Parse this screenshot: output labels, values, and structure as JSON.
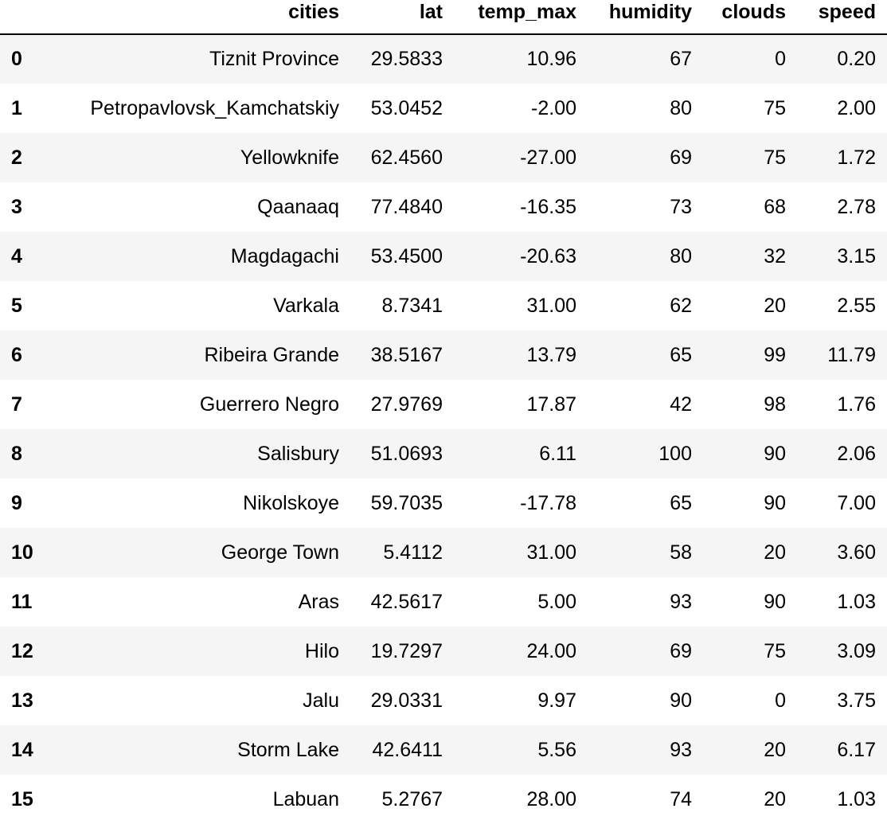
{
  "table": {
    "columns": [
      "cities",
      "lat",
      "temp_max",
      "humidity",
      "clouds",
      "speed"
    ],
    "rows": [
      {
        "index": "0",
        "cities": "Tiznit Province",
        "lat": "29.5833",
        "temp_max": "10.96",
        "humidity": "67",
        "clouds": "0",
        "speed": "0.20"
      },
      {
        "index": "1",
        "cities": "Petropavlovsk_Kamchatskiy",
        "lat": "53.0452",
        "temp_max": "-2.00",
        "humidity": "80",
        "clouds": "75",
        "speed": "2.00"
      },
      {
        "index": "2",
        "cities": "Yellowknife",
        "lat": "62.4560",
        "temp_max": "-27.00",
        "humidity": "69",
        "clouds": "75",
        "speed": "1.72"
      },
      {
        "index": "3",
        "cities": "Qaanaaq",
        "lat": "77.4840",
        "temp_max": "-16.35",
        "humidity": "73",
        "clouds": "68",
        "speed": "2.78"
      },
      {
        "index": "4",
        "cities": "Magdagachi",
        "lat": "53.4500",
        "temp_max": "-20.63",
        "humidity": "80",
        "clouds": "32",
        "speed": "3.15"
      },
      {
        "index": "5",
        "cities": "Varkala",
        "lat": "8.7341",
        "temp_max": "31.00",
        "humidity": "62",
        "clouds": "20",
        "speed": "2.55"
      },
      {
        "index": "6",
        "cities": "Ribeira Grande",
        "lat": "38.5167",
        "temp_max": "13.79",
        "humidity": "65",
        "clouds": "99",
        "speed": "11.79"
      },
      {
        "index": "7",
        "cities": "Guerrero Negro",
        "lat": "27.9769",
        "temp_max": "17.87",
        "humidity": "42",
        "clouds": "98",
        "speed": "1.76"
      },
      {
        "index": "8",
        "cities": "Salisbury",
        "lat": "51.0693",
        "temp_max": "6.11",
        "humidity": "100",
        "clouds": "90",
        "speed": "2.06"
      },
      {
        "index": "9",
        "cities": "Nikolskoye",
        "lat": "59.7035",
        "temp_max": "-17.78",
        "humidity": "65",
        "clouds": "90",
        "speed": "7.00"
      },
      {
        "index": "10",
        "cities": "George Town",
        "lat": "5.4112",
        "temp_max": "31.00",
        "humidity": "58",
        "clouds": "20",
        "speed": "3.60"
      },
      {
        "index": "11",
        "cities": "Aras",
        "lat": "42.5617",
        "temp_max": "5.00",
        "humidity": "93",
        "clouds": "90",
        "speed": "1.03"
      },
      {
        "index": "12",
        "cities": "Hilo",
        "lat": "19.7297",
        "temp_max": "24.00",
        "humidity": "69",
        "clouds": "75",
        "speed": "3.09"
      },
      {
        "index": "13",
        "cities": "Jalu",
        "lat": "29.0331",
        "temp_max": "9.97",
        "humidity": "90",
        "clouds": "0",
        "speed": "3.75"
      },
      {
        "index": "14",
        "cities": "Storm Lake",
        "lat": "42.6411",
        "temp_max": "5.56",
        "humidity": "93",
        "clouds": "20",
        "speed": "6.17"
      },
      {
        "index": "15",
        "cities": "Labuan",
        "lat": "5.2767",
        "temp_max": "28.00",
        "humidity": "74",
        "clouds": "20",
        "speed": "1.03"
      }
    ]
  }
}
